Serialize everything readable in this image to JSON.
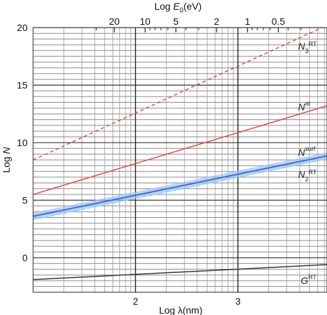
{
  "chart_data": {
    "type": "line",
    "xlabel": {
      "prefix": "Log ",
      "symbol": "λ",
      "suffix": "(nm)"
    },
    "ylabel": {
      "prefix": "Log ",
      "symbol": "N"
    },
    "top_axis_label": {
      "prefix": "Log ",
      "symbol": "E",
      "sub": "0",
      "suffix": "(eV)"
    },
    "xlim": [
      1.0,
      3.87
    ],
    "ylim": [
      -3.0,
      20.0
    ],
    "x_major_ticks": [
      2,
      3
    ],
    "x_grid_decades": [
      1,
      2,
      3
    ],
    "y_major_ticks": [
      0,
      5,
      10,
      15,
      20
    ],
    "y_minor_step": 0.5,
    "top_ticks": [
      {
        "label": "0.5",
        "value": 0.5
      },
      {
        "label": "1",
        "value": 1
      },
      {
        "label": "2",
        "value": 2
      },
      {
        "label": "5",
        "value": 5
      },
      {
        "label": "10",
        "value": 10
      },
      {
        "label": "20",
        "value": 20
      }
    ],
    "top_minor_ticks": [
      0.3,
      0.4,
      0.6,
      0.7,
      0.8,
      0.9,
      3,
      4,
      6,
      7,
      8,
      9,
      30
    ],
    "photon_energy_constant_eV_nm": 1240,
    "grid": true,
    "series": [
      {
        "name": "N3^RT",
        "label_main": "N",
        "label_sub": "3",
        "label_sup": "RT",
        "style": "dashed",
        "color": "#e8483a",
        "x": [
          1.0,
          3.87
        ],
        "y": [
          8.5,
          20.2
        ]
      },
      {
        "name": "N^at",
        "label_main": "N",
        "label_sup": "at",
        "style": "solid",
        "color": "#e8483a",
        "x": [
          1.0,
          3.87
        ],
        "y": [
          5.5,
          13.2
        ]
      },
      {
        "name": "N^surf",
        "label_main": "N",
        "label_sup": "surf",
        "style": "band",
        "color": "#3a6fd8",
        "x": [
          1.0,
          3.87
        ],
        "y": [
          3.6,
          8.85
        ]
      },
      {
        "name": "N2^RT",
        "label_main": "N",
        "label_sub": "2",
        "label_sup": "RT",
        "style": "dashed",
        "color": "#8fd6e8",
        "x": [
          1.0,
          3.87
        ],
        "y": [
          3.3,
          8.6
        ]
      },
      {
        "name": "G^RT",
        "label_main": "G",
        "label_sup": "RT",
        "style": "solid",
        "color": "#333333",
        "x": [
          1.0,
          3.87
        ],
        "y": [
          -1.9,
          -0.6
        ]
      }
    ]
  }
}
